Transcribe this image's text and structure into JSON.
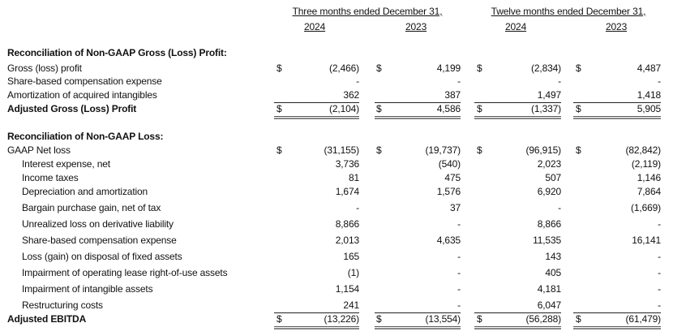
{
  "headers": {
    "three_months": "Three months ended December 31,",
    "twelve_months": "Twelve months ended December 31,",
    "years": [
      "2024",
      "2023",
      "2024",
      "2023"
    ]
  },
  "sections": [
    {
      "title": "Reconciliation of Non-GAAP Gross (Loss) Profit:",
      "rows": [
        {
          "label": "Gross (loss) profit",
          "indent": false,
          "dollar": true,
          "values": [
            "(2,466)",
            "4,199",
            "(2,834)",
            "4,487"
          ]
        },
        {
          "label": "Share-based compensation expense",
          "indent": false,
          "dollar": false,
          "values": [
            "-",
            "-",
            "-",
            "-"
          ]
        },
        {
          "label": "Amortization of acquired intangibles",
          "indent": false,
          "dollar": false,
          "values": [
            "362",
            "387",
            "1,497",
            "1,418"
          ]
        }
      ],
      "total": {
        "label": "Adjusted Gross (Loss) Profit",
        "dollar": true,
        "values": [
          "(2,104)",
          "4,586",
          "(1,337)",
          "5,905"
        ]
      }
    },
    {
      "title": "Reconciliation of Non-GAAP Loss:",
      "rows": [
        {
          "label": "GAAP Net loss",
          "indent": false,
          "dollar": true,
          "values": [
            "(31,155)",
            "(19,737)",
            "(96,915)",
            "(82,842)"
          ]
        },
        {
          "label": "Interest expense, net",
          "indent": true,
          "dollar": false,
          "values": [
            "3,736",
            "(540)",
            "2,023",
            "(2,119)"
          ]
        },
        {
          "label": "Income taxes",
          "indent": true,
          "dollar": false,
          "values": [
            "81",
            "475",
            "507",
            "1,146"
          ]
        },
        {
          "label": "Depreciation and amortization",
          "indent": true,
          "dollar": false,
          "values": [
            "1,674",
            "1,576",
            "6,920",
            "7,864"
          ]
        },
        {
          "label": "Bargain purchase gain, net of tax",
          "indent": true,
          "dollar": false,
          "values": [
            "-",
            "37",
            "-",
            "(1,669)"
          ]
        },
        {
          "label": "Unrealized loss on derivative liability",
          "indent": true,
          "dollar": false,
          "values": [
            "8,866",
            "-",
            "8,866",
            "-"
          ]
        },
        {
          "label": "Share-based compensation expense",
          "indent": true,
          "dollar": false,
          "values": [
            "2,013",
            "4,635",
            "11,535",
            "16,141"
          ]
        },
        {
          "label": "Loss (gain) on disposal of fixed assets",
          "indent": true,
          "dollar": false,
          "values": [
            "165",
            "-",
            "143",
            "-"
          ]
        },
        {
          "label": "Impairment of operating lease right-of-use assets",
          "indent": true,
          "dollar": false,
          "values": [
            "(1)",
            "-",
            "405",
            "-"
          ]
        },
        {
          "label": "Impairment of intangible assets",
          "indent": true,
          "dollar": false,
          "values": [
            "1,154",
            "-",
            "4,181",
            "-"
          ]
        },
        {
          "label": "Restructuring costs",
          "indent": true,
          "dollar": false,
          "values": [
            "241",
            "-",
            "6,047",
            "-"
          ]
        }
      ],
      "total": {
        "label": "Adjusted EBITDA",
        "dollar": true,
        "values": [
          "(13,226)",
          "(13,554)",
          "(56,288)",
          "(61,479)"
        ]
      }
    }
  ],
  "currency_symbol": "$"
}
